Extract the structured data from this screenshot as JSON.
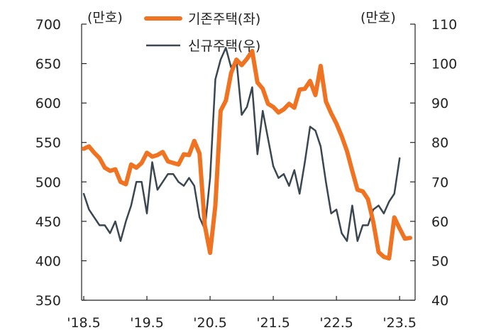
{
  "chart_data": {
    "type": "line",
    "title": "",
    "left_axis": {
      "unit_label": "(만호)",
      "ylim": [
        350,
        700
      ],
      "ticks": [
        350,
        400,
        450,
        500,
        550,
        600,
        650,
        700
      ]
    },
    "right_axis": {
      "unit_label": "(만호)",
      "ylim": [
        40,
        110
      ],
      "ticks": [
        40,
        50,
        60,
        70,
        80,
        90,
        100,
        110
      ]
    },
    "x_tick_labels": [
      "'18.5",
      "'19.5",
      "'20.5",
      "'21.5",
      "'22.5",
      "'23.5"
    ],
    "legend": {
      "placement": "top-center"
    },
    "series": [
      {
        "name": "기존주택(좌)",
        "axis": "left",
        "color": "#F07322",
        "values": [
          542,
          545,
          537,
          530,
          518,
          514,
          516,
          500,
          497,
          522,
          518,
          524,
          537,
          532,
          534,
          538,
          526,
          524,
          522,
          535,
          534,
          552,
          536,
          445,
          410,
          470,
          590,
          603,
          638,
          655,
          648,
          656,
          666,
          626,
          618,
          599,
          595,
          588,
          592,
          599,
          594,
          617,
          618,
          628,
          610,
          647,
          602,
          587,
          574,
          558,
          539,
          514,
          490,
          488,
          478,
          449,
          411,
          405,
          403,
          455,
          441,
          428,
          429
        ]
      },
      {
        "name": "신규주택(우)",
        "axis": "right",
        "color": "#3A4650",
        "values": [
          67,
          63,
          61,
          59,
          59,
          57,
          60,
          55,
          60,
          64,
          70,
          70,
          62,
          75,
          68,
          70,
          72,
          72,
          70,
          69,
          71,
          69,
          61,
          58,
          71,
          96,
          101,
          104,
          99,
          101,
          87,
          89,
          94,
          77,
          88,
          81,
          74,
          71,
          72,
          69,
          73,
          67,
          75,
          84,
          83,
          79,
          70,
          62,
          63,
          57,
          55,
          64,
          55,
          59,
          59,
          63,
          64,
          62,
          65,
          67,
          76
        ]
      }
    ]
  }
}
